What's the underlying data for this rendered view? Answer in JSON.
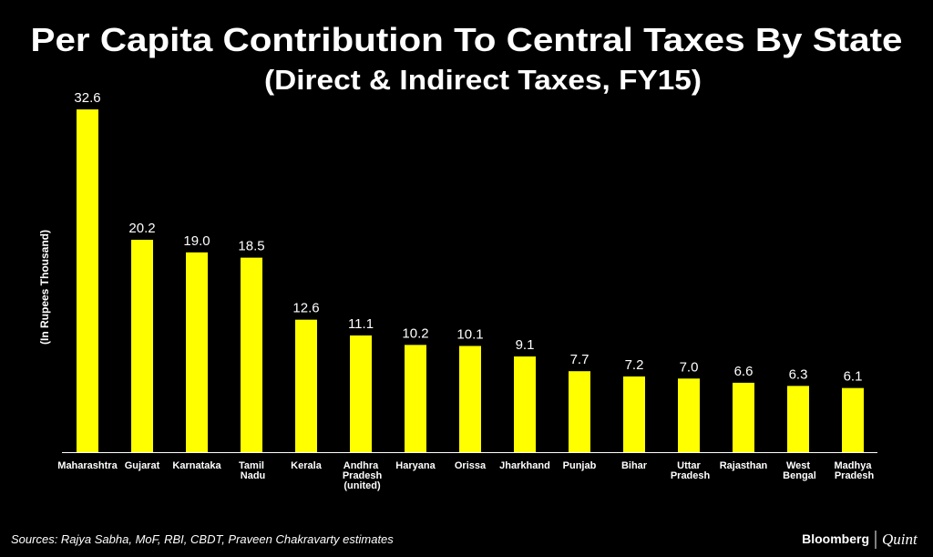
{
  "chart_data": {
    "type": "bar",
    "title": "Per Capita Contribution To Central Taxes By State",
    "subtitle": "(Direct & Indirect Taxes, FY15)",
    "y_label": "(In Rupees Thousand)",
    "categories": [
      "Maharashtra",
      "Gujarat",
      "Karnataka",
      "Tamil Nadu",
      "Kerala",
      "Andhra Pradesh (united)",
      "Haryana",
      "Orissa",
      "Jharkhand",
      "Punjab",
      "Bihar",
      "Uttar Pradesh",
      "Rajasthan",
      "West Bengal",
      "Madhya Pradesh"
    ],
    "values": [
      32.6,
      20.2,
      19.0,
      18.5,
      12.6,
      11.1,
      10.2,
      10.1,
      9.1,
      7.7,
      7.2,
      7.0,
      6.6,
      6.3,
      6.1
    ],
    "value_labels": [
      "32.6",
      "20.2",
      "19.0",
      "18.5",
      "12.6",
      "11.1",
      "10.2",
      "10.1",
      "9.1",
      "7.7",
      "7.2",
      "7.0",
      "6.6",
      "6.3",
      "6.1"
    ],
    "color": "#ffff00"
  },
  "footer": {
    "source": "Sources: Rajya Sabha, MoF, RBI, CBDT, Praveen Chakravarty estimates",
    "brand": "Bloomberg",
    "brand_sub": "Quint"
  }
}
